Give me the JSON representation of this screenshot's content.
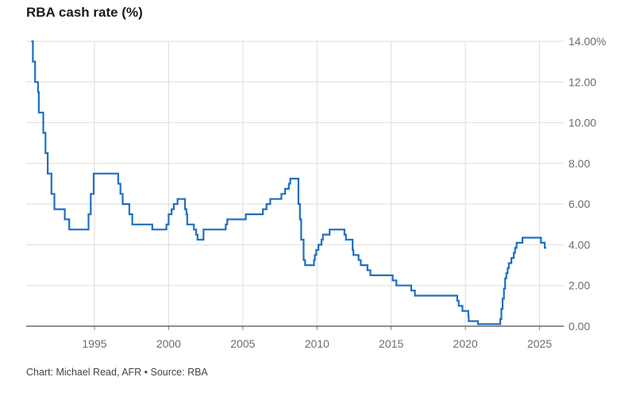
{
  "title": "RBA cash rate (%)",
  "footer": "Chart: Michael Read, AFR • Source: RBA",
  "colors": {
    "line": "#1f6fc1",
    "grid": "#dddddd",
    "axis": "#222222"
  },
  "chart_data": {
    "type": "line",
    "title": "RBA cash rate (%)",
    "xlabel": "",
    "ylabel": "",
    "xlim": [
      1990.4,
      2026.2
    ],
    "ylim": [
      0,
      14
    ],
    "x_ticks": [
      1995,
      2000,
      2005,
      2010,
      2015,
      2020,
      2025
    ],
    "x_tick_labels": [
      "1995",
      "2000",
      "2005",
      "2010",
      "2015",
      "2020",
      "2025"
    ],
    "y_ticks": [
      0,
      2,
      4,
      6,
      8,
      10,
      12,
      14
    ],
    "y_tick_labels": [
      "0.00",
      "2.00",
      "4.00",
      "6.00",
      "8.00",
      "10.00",
      "12.00",
      "14.00"
    ],
    "y_tick_suffix_on_top": "%",
    "grid": true,
    "step": true,
    "series": [
      {
        "name": "",
        "points": [
          [
            1990.75,
            14.0
          ],
          [
            1990.85,
            13.0
          ],
          [
            1991.0,
            12.0
          ],
          [
            1991.2,
            11.5
          ],
          [
            1991.25,
            10.5
          ],
          [
            1991.55,
            9.5
          ],
          [
            1991.7,
            8.5
          ],
          [
            1991.85,
            7.5
          ],
          [
            1992.1,
            6.5
          ],
          [
            1992.3,
            5.75
          ],
          [
            1993.0,
            5.25
          ],
          [
            1993.3,
            4.75
          ],
          [
            1994.6,
            5.5
          ],
          [
            1994.75,
            6.5
          ],
          [
            1994.95,
            7.5
          ],
          [
            1996.6,
            7.0
          ],
          [
            1996.75,
            6.5
          ],
          [
            1996.9,
            6.0
          ],
          [
            1997.35,
            5.5
          ],
          [
            1997.55,
            5.0
          ],
          [
            1998.9,
            4.75
          ],
          [
            1999.85,
            5.0
          ],
          [
            2000.0,
            5.5
          ],
          [
            2000.2,
            5.75
          ],
          [
            2000.35,
            6.0
          ],
          [
            2000.6,
            6.25
          ],
          [
            2001.1,
            5.75
          ],
          [
            2001.2,
            5.5
          ],
          [
            2001.25,
            5.0
          ],
          [
            2001.7,
            4.75
          ],
          [
            2001.85,
            4.5
          ],
          [
            2001.95,
            4.25
          ],
          [
            2002.35,
            4.75
          ],
          [
            2003.85,
            5.0
          ],
          [
            2003.95,
            5.25
          ],
          [
            2005.2,
            5.5
          ],
          [
            2006.35,
            5.75
          ],
          [
            2006.6,
            6.0
          ],
          [
            2006.85,
            6.25
          ],
          [
            2007.6,
            6.5
          ],
          [
            2007.85,
            6.75
          ],
          [
            2008.1,
            7.0
          ],
          [
            2008.2,
            7.25
          ],
          [
            2008.75,
            6.0
          ],
          [
            2008.85,
            5.25
          ],
          [
            2008.93,
            4.25
          ],
          [
            2009.1,
            3.25
          ],
          [
            2009.2,
            3.0
          ],
          [
            2009.8,
            3.25
          ],
          [
            2009.85,
            3.5
          ],
          [
            2009.95,
            3.75
          ],
          [
            2010.1,
            4.0
          ],
          [
            2010.3,
            4.25
          ],
          [
            2010.4,
            4.5
          ],
          [
            2010.85,
            4.75
          ],
          [
            2011.85,
            4.5
          ],
          [
            2011.95,
            4.25
          ],
          [
            2012.4,
            3.75
          ],
          [
            2012.45,
            3.5
          ],
          [
            2012.8,
            3.25
          ],
          [
            2012.95,
            3.0
          ],
          [
            2013.4,
            2.75
          ],
          [
            2013.6,
            2.5
          ],
          [
            2015.1,
            2.25
          ],
          [
            2015.35,
            2.0
          ],
          [
            2016.35,
            1.75
          ],
          [
            2016.6,
            1.5
          ],
          [
            2019.45,
            1.25
          ],
          [
            2019.55,
            1.0
          ],
          [
            2019.8,
            0.75
          ],
          [
            2020.2,
            0.5
          ],
          [
            2020.22,
            0.25
          ],
          [
            2020.85,
            0.1
          ],
          [
            2022.35,
            0.35
          ],
          [
            2022.43,
            0.85
          ],
          [
            2022.51,
            1.35
          ],
          [
            2022.6,
            1.85
          ],
          [
            2022.68,
            2.35
          ],
          [
            2022.76,
            2.6
          ],
          [
            2022.85,
            2.85
          ],
          [
            2022.93,
            3.1
          ],
          [
            2023.1,
            3.35
          ],
          [
            2023.26,
            3.6
          ],
          [
            2023.35,
            3.85
          ],
          [
            2023.45,
            4.1
          ],
          [
            2023.85,
            4.35
          ],
          [
            2025.1,
            4.1
          ],
          [
            2025.35,
            3.85
          ],
          [
            2025.45,
            3.85
          ]
        ]
      }
    ]
  }
}
